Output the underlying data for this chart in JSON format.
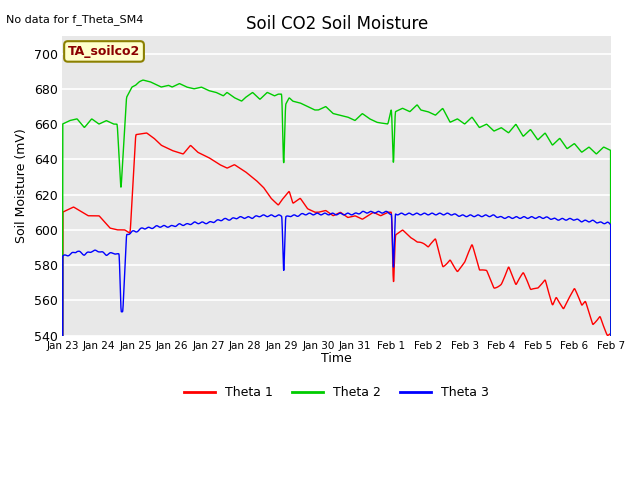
{
  "title": "Soil CO2 Soil Moisture",
  "subtitle": "No data for f_Theta_SM4",
  "ylabel": "Soil Moisture (mV)",
  "xlabel": "Time",
  "ylim": [
    540,
    710
  ],
  "yticks": [
    540,
    560,
    580,
    600,
    620,
    640,
    660,
    680,
    700
  ],
  "xtick_labels": [
    "Jan 23",
    "Jan 24",
    "Jan 25",
    "Jan 26",
    "Jan 27",
    "Jan 28",
    "Jan 29",
    "Jan 30",
    "Jan 31",
    "Feb 1",
    "Feb 2",
    "Feb 3",
    "Feb 4",
    "Feb 5",
    "Feb 6",
    "Feb 7"
  ],
  "legend_label": "TA_soilco2",
  "line_colors": {
    "theta1": "#FF0000",
    "theta2": "#00CC00",
    "theta3": "#0000FF"
  },
  "bg_color": "#E8E8E8",
  "fig_bg": "#FFFFFF"
}
